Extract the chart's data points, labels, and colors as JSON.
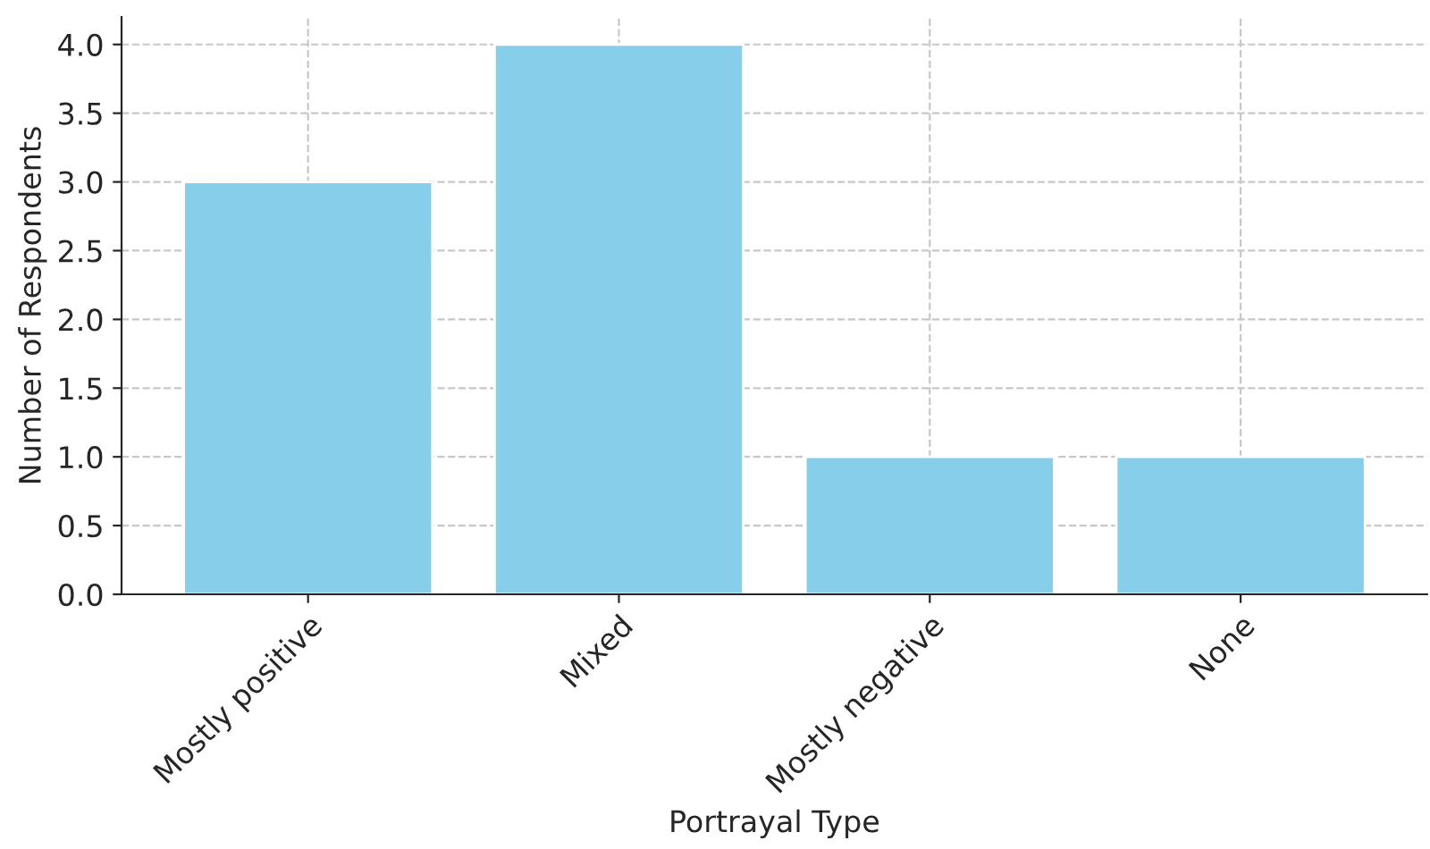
{
  "chart_data": {
    "type": "bar",
    "xlabel": "Portrayal Type",
    "ylabel": "Number of Respondents",
    "categories": [
      "Mostly positive",
      "Mixed",
      "Mostly negative",
      "None"
    ],
    "values": [
      3,
      4,
      1,
      1
    ],
    "color": "#87ceeb",
    "ylim": [
      0,
      4.2
    ],
    "yticks": [
      {
        "value": 0,
        "label": "0.0"
      },
      {
        "value": 0.5,
        "label": "0.5"
      },
      {
        "value": 1,
        "label": "1.0"
      },
      {
        "value": 1.5,
        "label": "1.5"
      },
      {
        "value": 2,
        "label": "2.0"
      },
      {
        "value": 2.5,
        "label": "2.5"
      },
      {
        "value": 3,
        "label": "3.0"
      },
      {
        "value": 3.5,
        "label": "3.5"
      },
      {
        "value": 4,
        "label": "4.0"
      }
    ],
    "grid": true
  }
}
